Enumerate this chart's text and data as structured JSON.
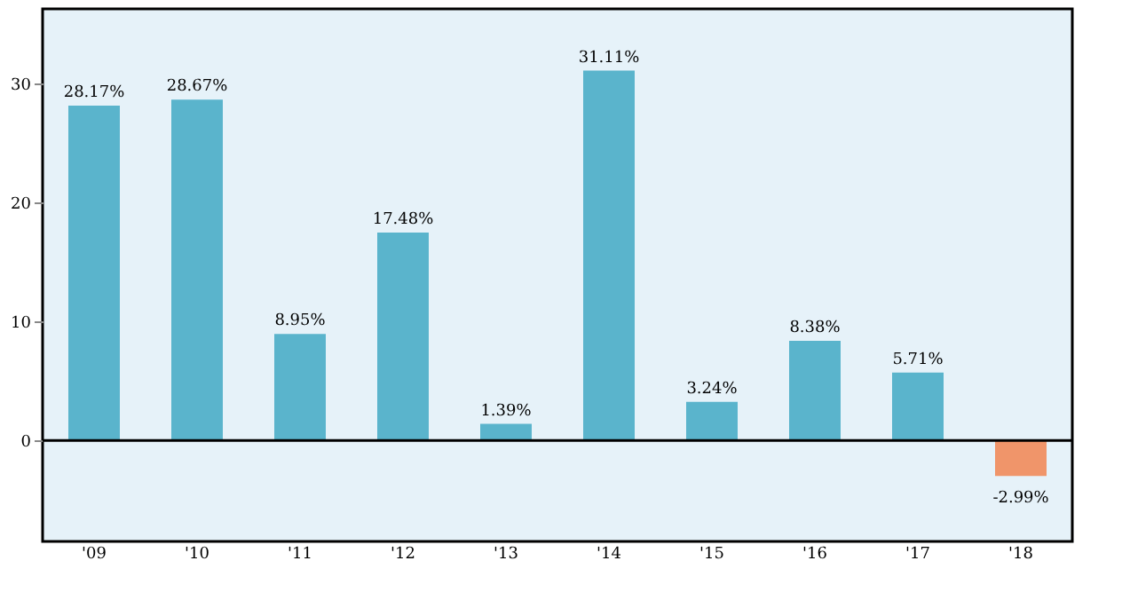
{
  "chart_data": {
    "type": "bar",
    "categories": [
      "'09",
      "'10",
      "'11",
      "'12",
      "'13",
      "'14",
      "'15",
      "'16",
      "'17",
      "'18"
    ],
    "values": [
      28.17,
      28.67,
      8.95,
      17.48,
      1.39,
      31.11,
      3.24,
      8.38,
      5.71,
      -2.99
    ],
    "colors": [
      "#5ab4cc",
      "#5ab4cc",
      "#5ab4cc",
      "#5ab4cc",
      "#5ab4cc",
      "#5ab4cc",
      "#5ab4cc",
      "#5ab4cc",
      "#5ab4cc",
      "#f0956a"
    ],
    "value_labels": [
      "28.17%",
      "28.67%",
      "8.95%",
      "17.48%",
      "1.39%",
      "31.11%",
      "3.24%",
      "8.38%",
      "5.71%",
      "-2.99%"
    ],
    "ylim": [
      -8.5,
      36.3
    ],
    "yticks": [
      0,
      10,
      20,
      30
    ],
    "grid": false,
    "ref_lines": [
      {
        "axis": "y",
        "value": 0,
        "color": "#000000"
      }
    ]
  }
}
